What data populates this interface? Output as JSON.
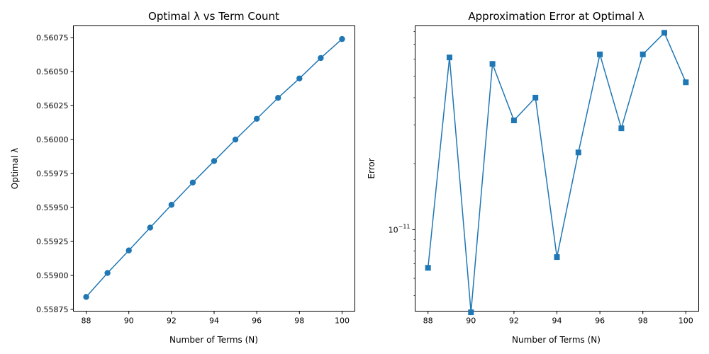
{
  "chart_data": [
    {
      "type": "line",
      "title": "Optimal λ vs Term Count",
      "xlabel": "Number of Terms (N)",
      "ylabel": "Optimal λ",
      "xlim": [
        87.4,
        100.6
      ],
      "ylim": [
        0.558737,
        0.560837
      ],
      "y_scale": "linear",
      "x_ticks": [
        "88",
        "90",
        "92",
        "94",
        "96",
        "98",
        "100"
      ],
      "y_ticks": [
        "0.55875",
        "0.55900",
        "0.55925",
        "0.55950",
        "0.55975",
        "0.56000",
        "0.56025",
        "0.56050",
        "0.56075"
      ],
      "marker": "circle",
      "color": "#1f77b4",
      "grid": false,
      "series": [
        {
          "x": [
            88,
            89,
            90,
            91,
            92,
            93,
            94,
            95,
            96,
            97,
            98,
            99,
            100
          ],
          "values": [
            0.558842,
            0.559018,
            0.559184,
            0.559352,
            0.55952,
            0.559684,
            0.559842,
            0.56,
            0.560153,
            0.560307,
            0.56045,
            0.5606,
            0.56074
          ]
        }
      ]
    },
    {
      "type": "line",
      "title": "Approximation Error at Optimal λ",
      "xlabel": "Number of Terms (N)",
      "ylabel": "Error",
      "xlim": [
        87.4,
        100.6
      ],
      "ylim": [
        4.25e-12,
        8.5e-11
      ],
      "y_scale": "log",
      "x_ticks": [
        "88",
        "90",
        "92",
        "94",
        "96",
        "98",
        "100"
      ],
      "y_ticks": [
        {
          "base": "10",
          "exp": "−11",
          "value": 1e-11
        }
      ],
      "marker": "square",
      "color": "#1f77b4",
      "grid": false,
      "series": [
        {
          "x": [
            88,
            89,
            90,
            91,
            92,
            93,
            94,
            95,
            96,
            97,
            98,
            99,
            100
          ],
          "values": [
            6.7e-12,
            6.1e-11,
            4.2e-12,
            5.7e-11,
            3.15e-11,
            4e-11,
            7.5e-12,
            2.25e-11,
            6.3e-11,
            2.9e-11,
            6.3e-11,
            7.9e-11,
            4.7e-11
          ]
        }
      ]
    }
  ]
}
